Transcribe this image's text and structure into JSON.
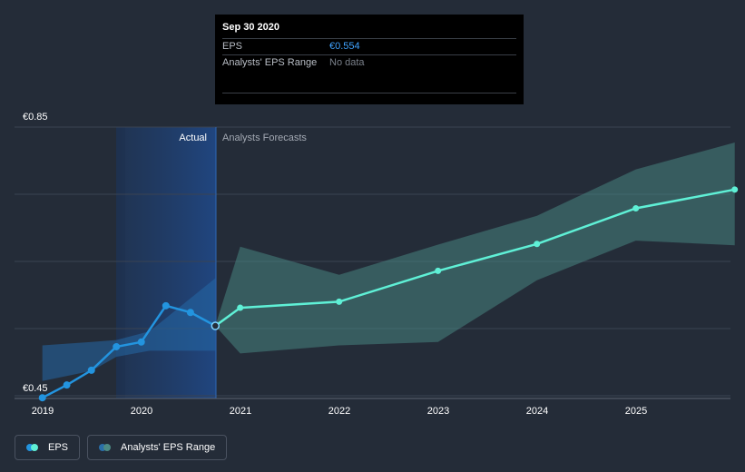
{
  "chart_data": {
    "type": "line",
    "y_axis": {
      "min_label": "€0.45",
      "max_label": "€0.85",
      "ylim": [
        0.45,
        0.85
      ]
    },
    "x_ticks": [
      "2019",
      "2020",
      "2021",
      "2022",
      "2023",
      "2024",
      "2025"
    ],
    "actual_label": "Actual",
    "forecast_label": "Analysts Forecasts",
    "series": [
      {
        "name": "EPS",
        "color": "#2394df",
        "points": [
          {
            "x": "2018-12-31",
            "y": 0.447
          },
          {
            "x": "2019-03-31",
            "y": 0.466
          },
          {
            "x": "2019-06-30",
            "y": 0.488
          },
          {
            "x": "2019-09-30",
            "y": 0.523
          },
          {
            "x": "2019-12-31",
            "y": 0.53
          },
          {
            "x": "2020-03-31",
            "y": 0.584
          },
          {
            "x": "2020-06-30",
            "y": 0.574
          },
          {
            "x": "2020-09-30",
            "y": 0.554
          }
        ]
      },
      {
        "name": "EPS forecast",
        "color": "#5ff0d6",
        "points": [
          {
            "x": "2020-09-30",
            "y": 0.554
          },
          {
            "x": "2020-12-31",
            "y": 0.581
          },
          {
            "x": "2021-12-31",
            "y": 0.59
          },
          {
            "x": "2022-12-31",
            "y": 0.636
          },
          {
            "x": "2023-12-31",
            "y": 0.676
          },
          {
            "x": "2024-12-31",
            "y": 0.729
          },
          {
            "x": "2025-12-31",
            "y": 0.757
          }
        ]
      }
    ],
    "past_range": {
      "x": [
        "2018-12-31",
        "2019-06-30",
        "2019-09-30",
        "2020-01-31",
        "2020-09-30"
      ],
      "high": [
        0.525,
        0.53,
        0.533,
        0.546,
        0.625
      ],
      "low": [
        0.472,
        0.487,
        0.508,
        0.517,
        0.517
      ]
    },
    "forecast_range": {
      "x": [
        "2020-09-30",
        "2020-12-31",
        "2021-12-31",
        "2022-12-31",
        "2023-12-31",
        "2024-12-31",
        "2025-12-31"
      ],
      "high": [
        0.554,
        0.672,
        0.63,
        0.675,
        0.718,
        0.787,
        0.827
      ],
      "low": [
        0.554,
        0.513,
        0.525,
        0.53,
        0.622,
        0.681,
        0.674
      ]
    },
    "tooltip": {
      "date": "Sep 30 2020",
      "eps_label": "EPS",
      "eps_value": "€0.554",
      "range_label": "Analysts' EPS Range",
      "range_value": "No data"
    },
    "legend": [
      {
        "label": "EPS",
        "color1": "#2394df",
        "color2": "#5ff0d6"
      },
      {
        "label": "Analysts' EPS Range",
        "color1": "#2a6fa8",
        "color2": "#4c8a84"
      }
    ],
    "grid": true
  }
}
